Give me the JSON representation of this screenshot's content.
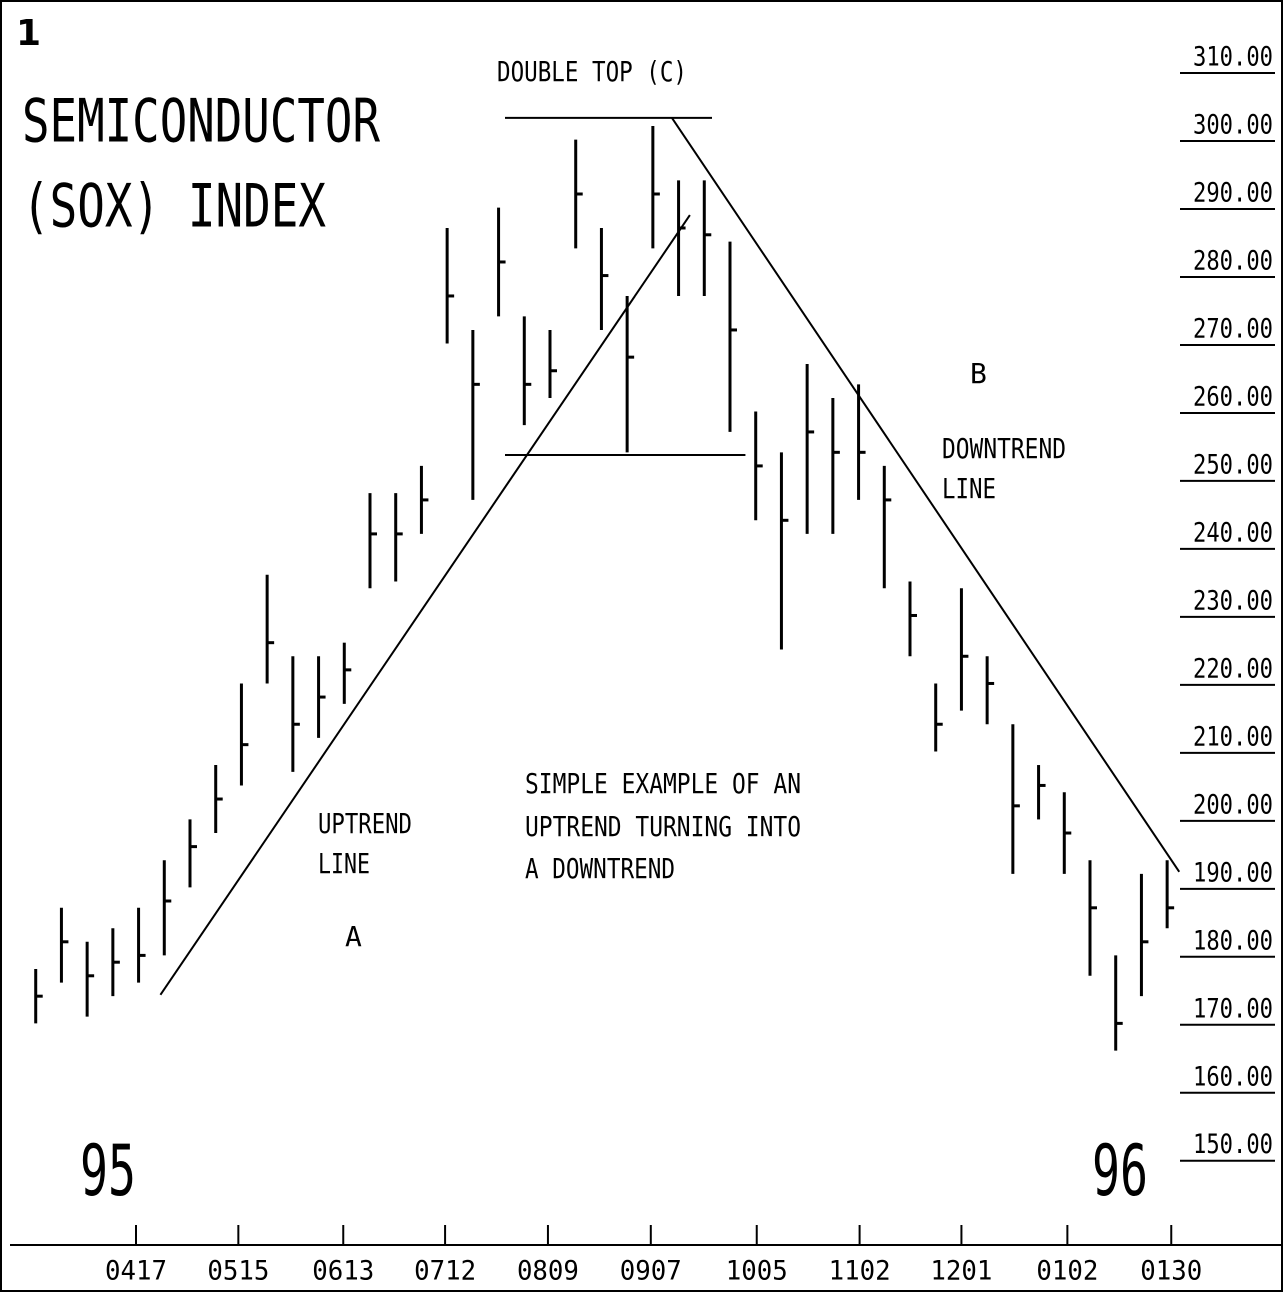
{
  "chart_data": {
    "type": "hlc",
    "figure_number": "1",
    "title_lines": [
      "SEMICONDUCTOR",
      "(SOX) INDEX"
    ],
    "year_labels": [
      "95",
      "96"
    ],
    "annotations": [
      "DOUBLE TOP (C)",
      "UPTREND",
      "LINE",
      "A",
      "SIMPLE EXAMPLE OF AN",
      "UPTREND TURNING INTO",
      "A DOWNTREND",
      "B",
      "DOWNTREND",
      "LINE"
    ],
    "color": "#000000",
    "x": [
      0,
      1,
      2,
      3,
      4,
      5,
      6,
      7,
      8,
      9,
      10,
      11,
      12,
      13,
      14,
      15,
      16,
      17,
      18,
      19,
      20,
      21,
      22,
      23,
      24,
      25,
      26,
      27,
      28,
      29,
      30,
      31,
      32,
      33,
      34,
      35,
      36,
      37,
      38,
      39,
      40,
      41,
      42,
      43,
      44
    ],
    "high": [
      176,
      185,
      180,
      182,
      185,
      192,
      198,
      206,
      218,
      234,
      222,
      222,
      224,
      246,
      246,
      250,
      285,
      270,
      288,
      272,
      270,
      298,
      285,
      275,
      300,
      292,
      292,
      283,
      258,
      252,
      265,
      260,
      262,
      250,
      233,
      218,
      232,
      222,
      212,
      206,
      202,
      192,
      178,
      190,
      192
    ],
    "low": [
      168,
      174,
      169,
      172,
      174,
      178,
      188,
      196,
      203,
      218,
      205,
      210,
      215,
      232,
      233,
      240,
      268,
      245,
      272,
      256,
      260,
      282,
      270,
      252,
      282,
      275,
      275,
      255,
      242,
      223,
      240,
      240,
      245,
      232,
      222,
      208,
      214,
      212,
      190,
      198,
      190,
      175,
      164,
      172,
      182
    ],
    "close": [
      172,
      180,
      175,
      177,
      178,
      186,
      194,
      201,
      209,
      224,
      212,
      216,
      220,
      240,
      240,
      245,
      275,
      262,
      280,
      262,
      264,
      290,
      278,
      266,
      290,
      285,
      284,
      270,
      250,
      242,
      255,
      252,
      252,
      245,
      228,
      212,
      222,
      218,
      200,
      203,
      196,
      185,
      168,
      180,
      185
    ],
    "trendlines": [
      [
        [
          4.85,
          172.2
        ],
        [
          25.44,
          286.9
        ]
      ],
      [
        [
          24.74,
          301.2
        ],
        [
          44.47,
          190.3
        ]
      ],
      [
        [
          18.25,
          301.2
        ],
        [
          26.3,
          301.2
        ]
      ],
      [
        [
          18.25,
          251.6
        ],
        [
          27.6,
          251.6
        ]
      ]
    ],
    "xlim": [
      -1,
      44.5
    ],
    "ylim": [
      135.4,
      317.8
    ],
    "xticks": [
      {
        "value": 3.9,
        "label": "0417"
      },
      {
        "value": 7.88,
        "label": "0515"
      },
      {
        "value": 11.96,
        "label": "0613"
      },
      {
        "value": 15.92,
        "label": "0712"
      },
      {
        "value": 19.92,
        "label": "0809"
      },
      {
        "value": 23.92,
        "label": "0907"
      },
      {
        "value": 28.04,
        "label": "1005"
      },
      {
        "value": 32.04,
        "label": "1102"
      },
      {
        "value": 36.0,
        "label": "1201"
      },
      {
        "value": 40.12,
        "label": "0102"
      },
      {
        "value": 44.16,
        "label": "0130"
      }
    ],
    "yticks": [
      {
        "value": 310,
        "label": "310.00"
      },
      {
        "value": 300,
        "label": "300.00"
      },
      {
        "value": 290,
        "label": "290.00"
      },
      {
        "value": 280,
        "label": "280.00"
      },
      {
        "value": 270,
        "label": "270.00"
      },
      {
        "value": 260,
        "label": "260.00"
      },
      {
        "value": 250,
        "label": "250.00"
      },
      {
        "value": 240,
        "label": "240.00"
      },
      {
        "value": 230,
        "label": "230.00"
      },
      {
        "value": 220,
        "label": "220.00"
      },
      {
        "value": 210,
        "label": "210.00"
      },
      {
        "value": 200,
        "label": "200.00"
      },
      {
        "value": 190,
        "label": "190.00"
      },
      {
        "value": 180,
        "label": "180.00"
      },
      {
        "value": 170,
        "label": "170.00"
      },
      {
        "value": 160,
        "label": "160.00"
      },
      {
        "value": 150,
        "label": "150.00"
      }
    ]
  }
}
